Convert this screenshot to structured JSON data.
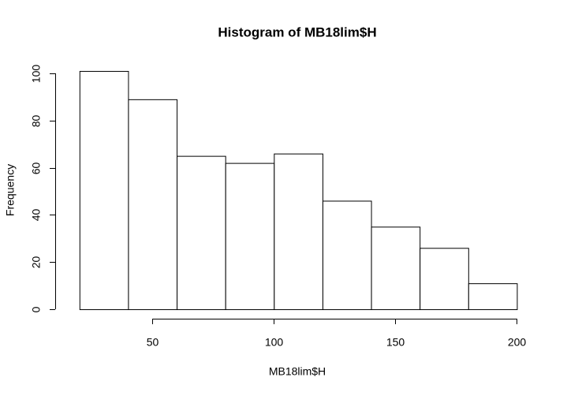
{
  "chart_data": {
    "type": "histogram",
    "title": "Histogram of MB18lim$H",
    "x_label": "MB18lim$H",
    "y_label": "Frequency",
    "bins": [
      20,
      40,
      60,
      80,
      100,
      120,
      140,
      160,
      180,
      200
    ],
    "counts": [
      101,
      89,
      65,
      62,
      66,
      46,
      35,
      26,
      11
    ],
    "color": "#ffffff",
    "edgecolor": "#000000",
    "xlim": [
      10,
      207
    ],
    "ylim": [
      -4,
      105
    ],
    "xticks": [
      50,
      100,
      150,
      200
    ],
    "yticks": [
      0,
      20,
      40,
      60,
      80,
      100
    ],
    "grid": false
  }
}
